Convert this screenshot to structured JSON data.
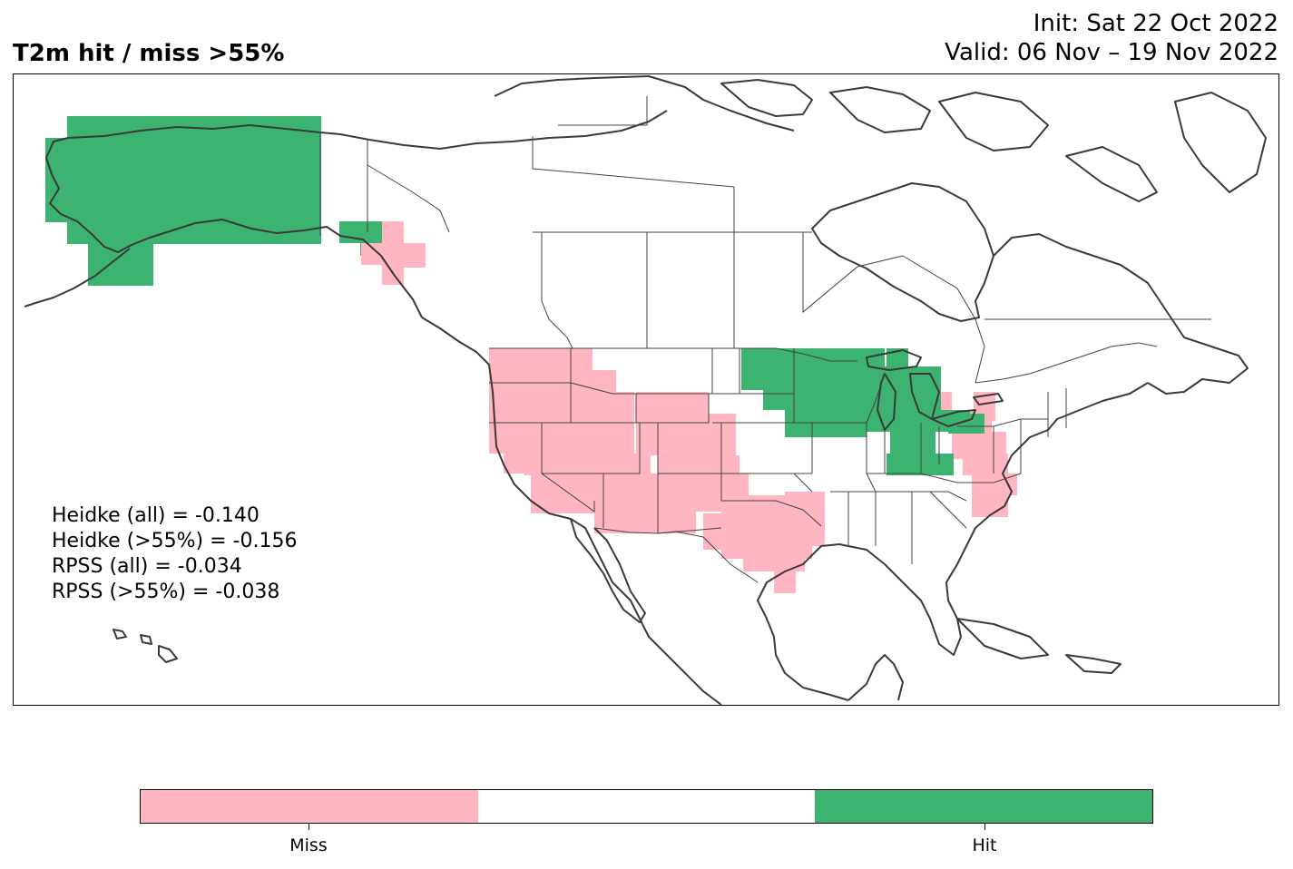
{
  "title": "T2m hit / miss  >55%",
  "init_text": "Init: Sat 22 Oct 2022",
  "valid_text": "Valid: 06 Nov – 19 Nov 2022",
  "scores": [
    "Heidke (all) = -0.140",
    "Heidke (>55%) = -0.156",
    "RPSS (all) = -0.034",
    "RPSS (>55%) = -0.038"
  ],
  "colors": {
    "miss": "#FFB6C1",
    "neutral": "#FFFFFF",
    "hit": "#3CB371",
    "coast": "#3a3a3a",
    "border": "#444444"
  },
  "colorbar": {
    "segments": [
      "miss",
      "neutral",
      "hit"
    ],
    "labels": [
      "Miss",
      "Hit"
    ]
  }
}
